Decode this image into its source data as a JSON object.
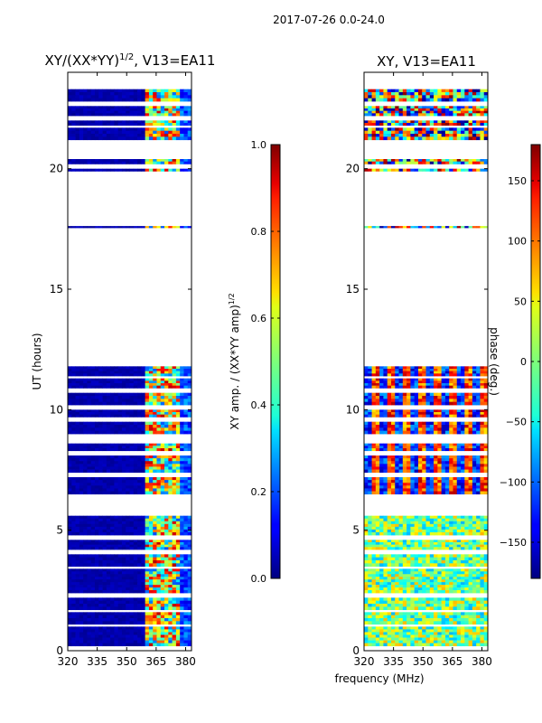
{
  "figure_title": "2017-07-26 0.0-24.0",
  "shared_xlabel": "frequency (MHz)",
  "chart_data": [
    {
      "type": "heatmap",
      "title_main": "XY/(XX*YY)",
      "title_sup": "1/2",
      "title_tail": ", V13=EA11",
      "xlabel": "",
      "ylabel": "UT (hours)",
      "xlim": [
        320,
        383
      ],
      "ylim": [
        0,
        24
      ],
      "xticks": [
        "320",
        "335",
        "350",
        "365",
        "380"
      ],
      "xtick_values": [
        320,
        335,
        350,
        365,
        380
      ],
      "yticks": [
        "0",
        "5",
        "10",
        "15",
        "20"
      ],
      "ytick_values": [
        0,
        5,
        10,
        15,
        20
      ],
      "colormap": "jet",
      "colorbar": {
        "label": "XY amp. / (XX*YY amp)",
        "label_sup": "1/2",
        "range": [
          0.0,
          1.0
        ],
        "ticks": [
          "0.0",
          "0.2",
          "0.4",
          "0.6",
          "0.8",
          "1.0"
        ],
        "tick_values": [
          0.0,
          0.2,
          0.4,
          0.6,
          0.8,
          1.0
        ]
      },
      "bands": [
        [
          0.2,
          1.0
        ],
        [
          1.1,
          1.6
        ],
        [
          1.7,
          2.2
        ],
        [
          2.4,
          3.4
        ],
        [
          3.5,
          4.0
        ],
        [
          4.2,
          4.6
        ],
        [
          4.8,
          5.6
        ],
        [
          6.5,
          7.2
        ],
        [
          7.4,
          8.1
        ],
        [
          8.3,
          8.6
        ],
        [
          9.0,
          9.5
        ],
        [
          9.7,
          10.0
        ],
        [
          10.2,
          10.7
        ],
        [
          10.9,
          11.3
        ],
        [
          11.4,
          11.8
        ],
        [
          17.55,
          17.62
        ],
        [
          19.9,
          20.0
        ],
        [
          20.2,
          20.4
        ],
        [
          21.2,
          21.7
        ],
        [
          21.8,
          22.0
        ],
        [
          22.2,
          22.6
        ],
        [
          22.8,
          23.3
        ]
      ],
      "value_description": "low (~0.05) below 360 MHz, higher and variable (0.2-0.95) from 360 to 378 MHz"
    },
    {
      "type": "heatmap",
      "title_main": "XY, V13=EA11",
      "xlabel": "",
      "ylabel": "",
      "xlim": [
        320,
        383
      ],
      "ylim": [
        0,
        24
      ],
      "xticks": [
        "320",
        "335",
        "350",
        "365",
        "380"
      ],
      "xtick_values": [
        320,
        335,
        350,
        365,
        380
      ],
      "yticks": [
        "0",
        "5",
        "10",
        "15",
        "20"
      ],
      "ytick_values": [
        0,
        5,
        10,
        15,
        20
      ],
      "colormap": "jet",
      "colorbar": {
        "label": "phase (deg.)",
        "range": [
          -180,
          180
        ],
        "ticks": [
          "−150",
          "−100",
          "−50",
          "0",
          "50",
          "100",
          "150"
        ],
        "tick_values": [
          -150,
          -100,
          -50,
          0,
          50,
          100,
          150
        ]
      },
      "bands": [
        [
          0.2,
          1.0
        ],
        [
          1.1,
          1.6
        ],
        [
          1.7,
          2.2
        ],
        [
          2.4,
          3.4
        ],
        [
          3.5,
          4.0
        ],
        [
          4.2,
          4.6
        ],
        [
          4.8,
          5.6
        ],
        [
          6.5,
          7.2
        ],
        [
          7.4,
          8.1
        ],
        [
          8.3,
          8.6
        ],
        [
          9.0,
          9.5
        ],
        [
          9.7,
          10.0
        ],
        [
          10.2,
          10.7
        ],
        [
          10.9,
          11.3
        ],
        [
          11.4,
          11.8
        ],
        [
          17.55,
          17.62
        ],
        [
          19.9,
          20.0
        ],
        [
          20.2,
          20.4
        ],
        [
          21.2,
          21.7
        ],
        [
          21.8,
          22.0
        ],
        [
          22.2,
          22.6
        ],
        [
          22.8,
          23.3
        ]
      ],
      "value_description": "phase varying across full range; mostly -50..50 in 0-5 h, strong stripes 6-12 h"
    }
  ]
}
